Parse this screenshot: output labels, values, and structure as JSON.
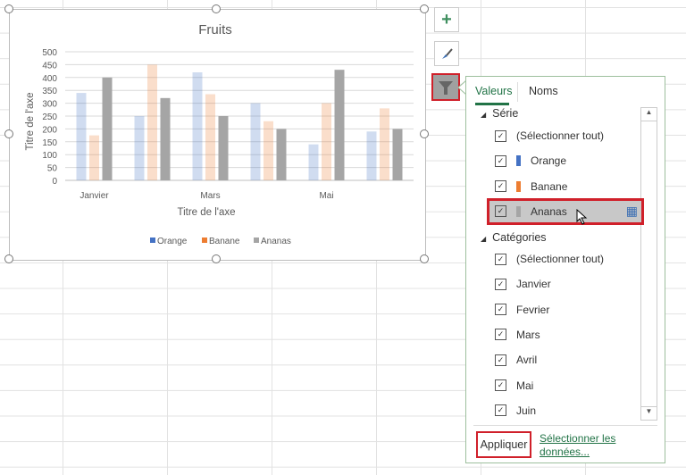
{
  "chart_data": {
    "type": "bar",
    "title": "Fruits",
    "xlabel": "Titre de l'axe",
    "ylabel": "Titre de l'axe",
    "ylim": [
      0,
      500
    ],
    "yticks": [
      0,
      50,
      100,
      150,
      200,
      250,
      300,
      350,
      400,
      450,
      500
    ],
    "categories": [
      "Janvier",
      "Fevrier",
      "Mars",
      "Avril",
      "Mai",
      "Juin"
    ],
    "shown_xtick_labels": [
      "Janvier",
      "Mars",
      "Mai"
    ],
    "grid": true,
    "legend": "bottom",
    "series": [
      {
        "name": "Orange",
        "color": "#4472c4",
        "values": [
          340,
          250,
          420,
          300,
          140,
          190
        ],
        "faded": true
      },
      {
        "name": "Banane",
        "color": "#ed7d31",
        "values": [
          175,
          450,
          335,
          230,
          300,
          280
        ],
        "faded": true
      },
      {
        "name": "Ananas",
        "color": "#a5a5a5",
        "values": [
          400,
          320,
          250,
          200,
          430,
          200
        ],
        "faded": false
      }
    ]
  },
  "side_buttons": {
    "add": "plus-icon",
    "style": "brush-icon",
    "filter": "funnel-icon"
  },
  "filter_pane": {
    "tabs": [
      "Valeurs",
      "Noms"
    ],
    "active_tab": "Valeurs",
    "serie_header": "Série",
    "serie_items": [
      {
        "label": "(Sélectionner tout)",
        "checked": true
      },
      {
        "label": "Orange",
        "checked": true,
        "color": "#4472c4"
      },
      {
        "label": "Banane",
        "checked": true,
        "color": "#ed7d31"
      },
      {
        "label": "Ananas",
        "checked": true,
        "color": "#a5a5a5",
        "hovered": true
      }
    ],
    "categories_header": "Catégories",
    "category_items": [
      {
        "label": "(Sélectionner tout)",
        "checked": true
      },
      {
        "label": "Janvier",
        "checked": true
      },
      {
        "label": "Fevrier",
        "checked": true
      },
      {
        "label": "Mars",
        "checked": true
      },
      {
        "label": "Avril",
        "checked": true
      },
      {
        "label": "Mai",
        "checked": true
      },
      {
        "label": "Juin",
        "checked": true
      }
    ],
    "apply_label": "Appliquer",
    "select_data_label_1": "Sélectionner les",
    "select_data_label_2": "données..."
  }
}
